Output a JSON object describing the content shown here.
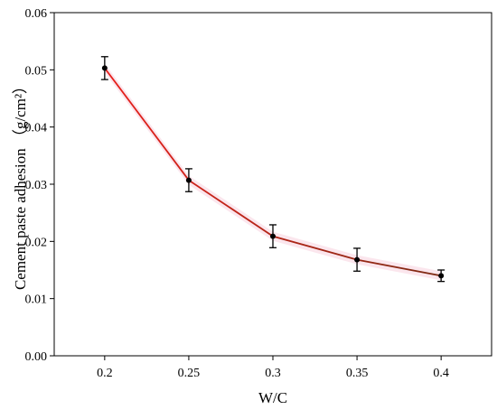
{
  "chart_data": {
    "type": "line",
    "title": "",
    "xlabel": "W/C",
    "ylabel": "Cement paste adhesion",
    "ylabel_unit": "（g/cm²）",
    "x": [
      0.2,
      0.25,
      0.3,
      0.35,
      0.4
    ],
    "x_tick_labels": [
      "0.2",
      "0.25",
      "0.3",
      "0.35",
      "0.4"
    ],
    "y_tick_labels": [
      "0.00",
      "0.01",
      "0.02",
      "0.03",
      "0.04",
      "0.05",
      "0.06"
    ],
    "y_ticks": [
      0,
      0.01,
      0.02,
      0.03,
      0.04,
      0.05,
      0.06
    ],
    "xlim": [
      0.17,
      0.43
    ],
    "ylim": [
      0,
      0.06
    ],
    "series": [
      {
        "values": [
          0.0503,
          0.0307,
          0.0209,
          0.0168,
          0.014
        ],
        "errors": [
          0.002,
          0.002,
          0.002,
          0.002,
          0.001
        ],
        "line_color_start": "#e8201c",
        "line_color_end": "#7a2a12",
        "marker_color": "#000000",
        "errorbar_color": "#000000"
      }
    ],
    "grid": false,
    "legend": "none"
  }
}
